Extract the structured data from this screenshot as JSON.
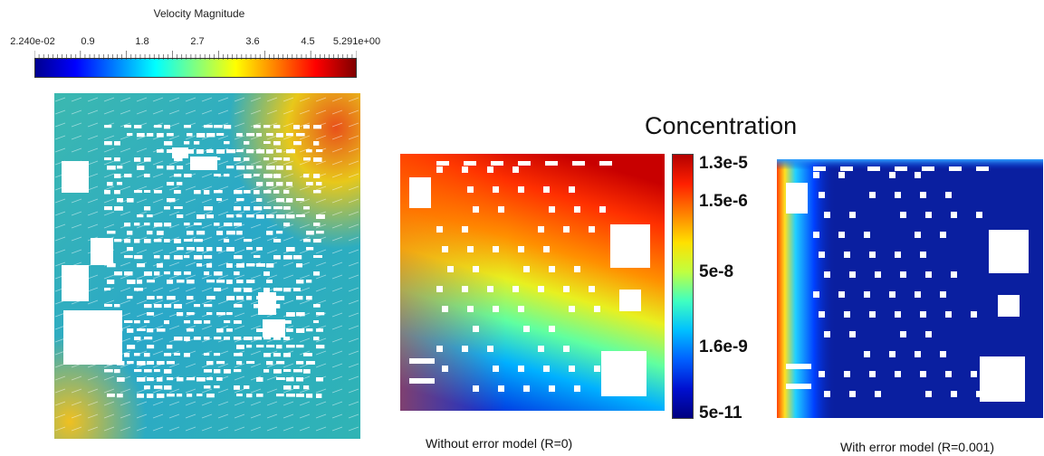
{
  "velocity": {
    "title": "Velocity Magnitude",
    "ticks": [
      "2.240e-02",
      "0.9",
      "1.8",
      "2.7",
      "3.6",
      "4.5",
      "5.291e+00"
    ],
    "colormap": [
      "#000090",
      "#0000ff",
      "#0080ff",
      "#00ffff",
      "#80ff80",
      "#ffff00",
      "#ff8000",
      "#ff0000",
      "#800000"
    ]
  },
  "concentration": {
    "title": "Concentration",
    "labels": [
      "1.3e-5",
      "1.5e-6",
      "5e-8",
      "1.6e-9",
      "5e-11"
    ],
    "colormap": [
      "#b40000",
      "#ff2000",
      "#ff8000",
      "#ffe000",
      "#c0ff40",
      "#40ffc0",
      "#00c0ff",
      "#0060ff",
      "#0010d0",
      "#000080"
    ]
  },
  "panels": {
    "left_caption": "Without error model (R=0)",
    "right_caption": "With error model (R=0.001)"
  },
  "colors": {
    "velocity_background": "#2fb2b8",
    "accent_high": "#e8501a",
    "conc_low": "#0a1fa0"
  }
}
